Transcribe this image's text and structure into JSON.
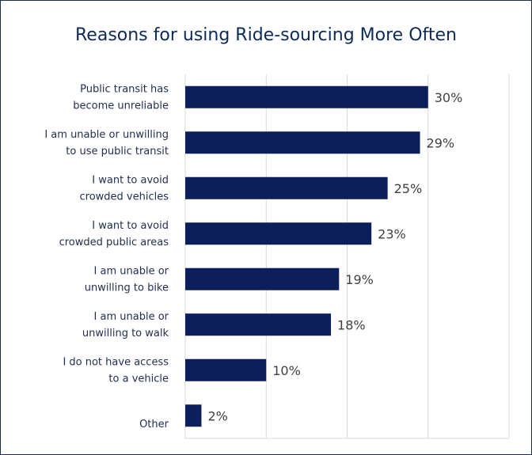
{
  "chart_data": {
    "type": "bar",
    "orientation": "horizontal",
    "title": "Reasons for using Ride-sourcing More Often",
    "categories": [
      [
        "Public transit has",
        "become unreliable"
      ],
      [
        "I am unable or unwilling",
        "to use public transit"
      ],
      [
        "I want to avoid",
        "crowded vehicles"
      ],
      [
        "I want to avoid",
        "crowded public areas"
      ],
      [
        "I am unable or",
        "unwilling to bike"
      ],
      [
        "I am unable or",
        "unwilling to walk"
      ],
      [
        "I do not have access",
        "to a vehicle"
      ],
      [
        "",
        "Other"
      ]
    ],
    "values": [
      30,
      29,
      25,
      23,
      19,
      18,
      10,
      2
    ],
    "value_labels": [
      "30%",
      "29%",
      "25%",
      "23%",
      "19%",
      "18%",
      "10%",
      "2%"
    ],
    "xlim": [
      0,
      40
    ],
    "x_unit": "%",
    "grid": true,
    "bar_color": "#0c1f5c",
    "title_color": "#0c2a5b"
  }
}
